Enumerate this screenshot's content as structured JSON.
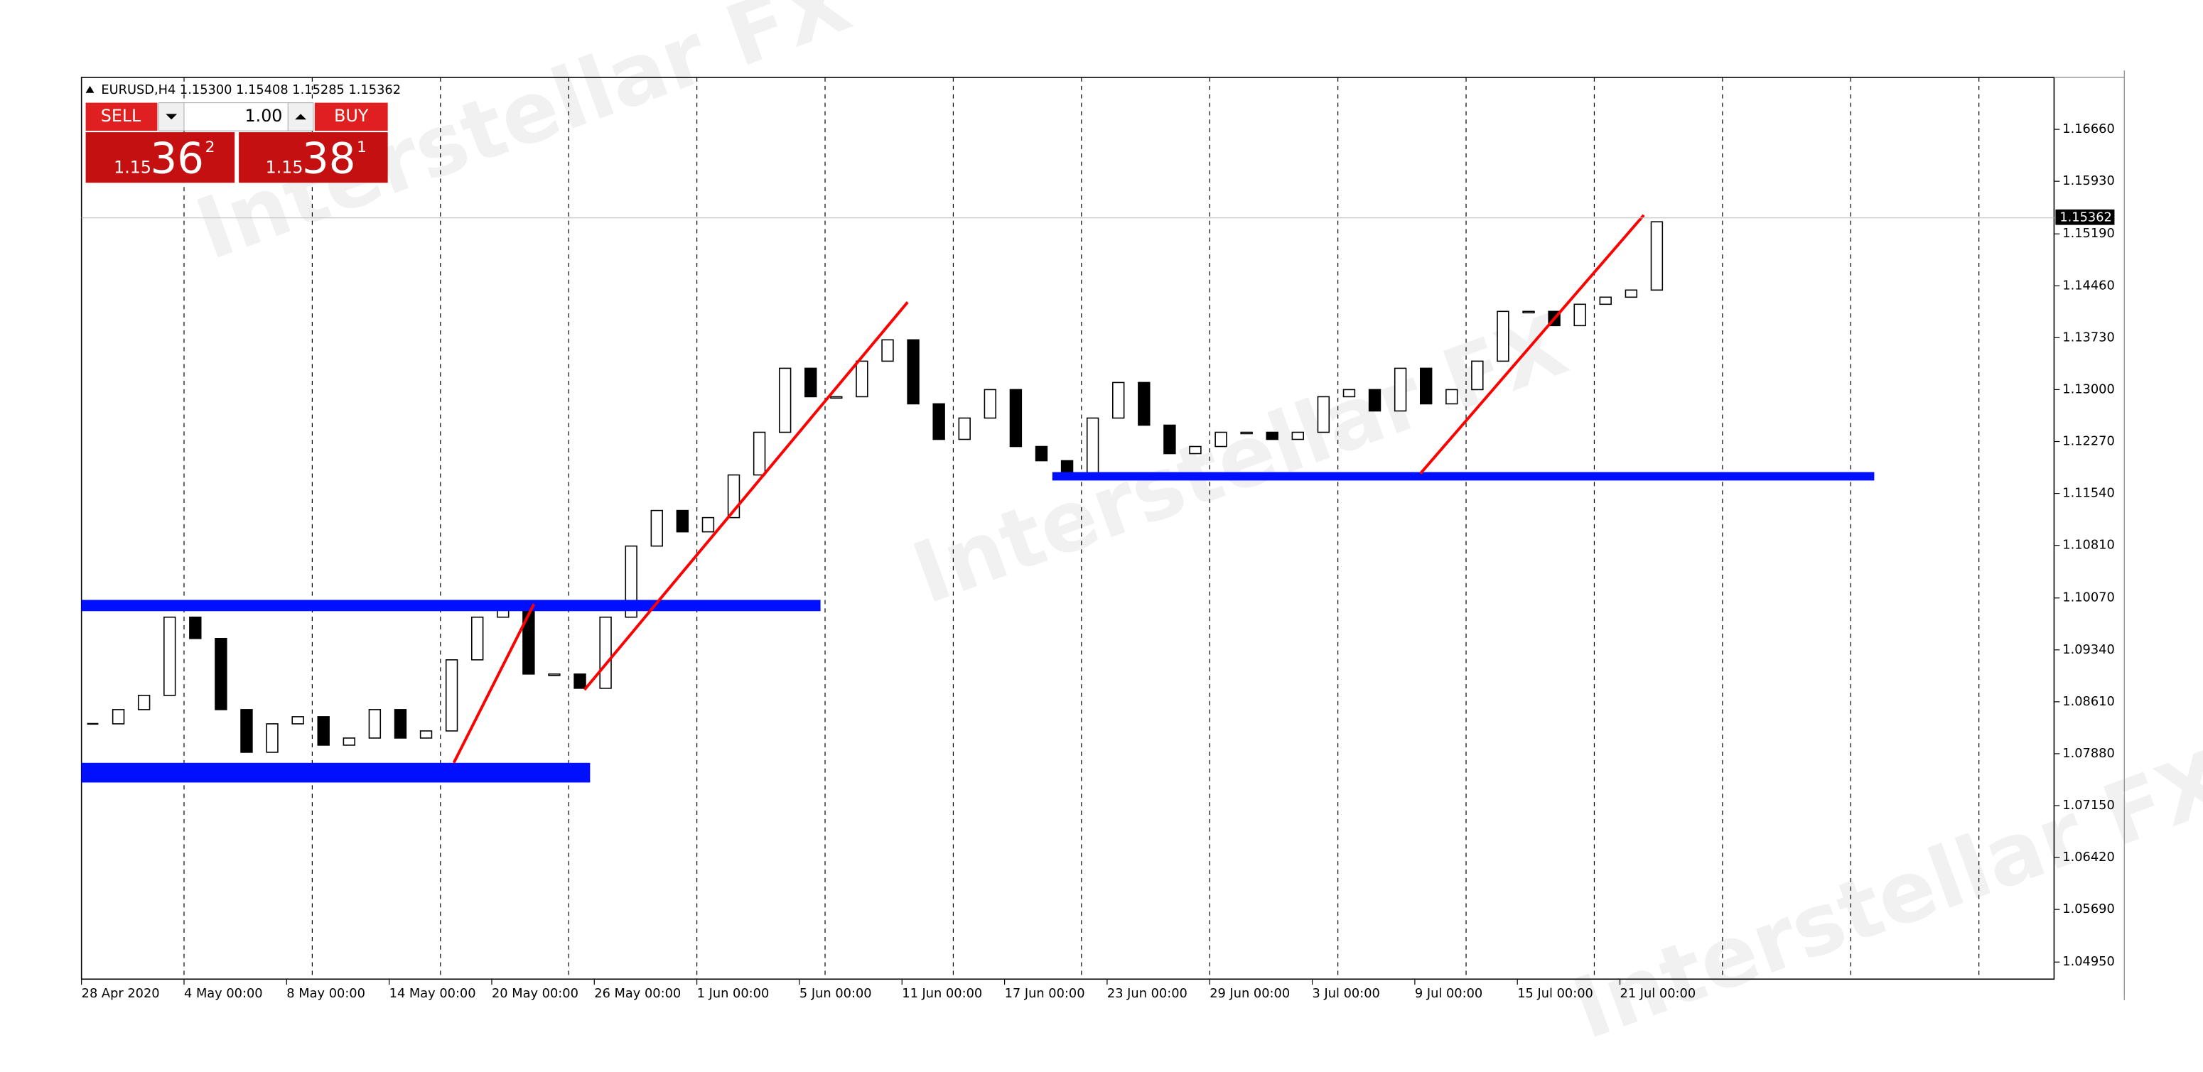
{
  "chart_data": {
    "type": "candlestick",
    "symbol_header": "EURUSD,H4  1.15300 1.15408 1.15285 1.15362",
    "trade_panel": {
      "sell": "SELL",
      "buy": "BUY",
      "lot": "1.00",
      "sell_big": "1.15",
      "sell_main": "36",
      "sell_sup": "2",
      "buy_big": "1.15",
      "buy_main": "38",
      "buy_sup": "1"
    },
    "price_label": "1.15362",
    "watermark": "Interstellar FX",
    "categories": [
      "28 Apr 2020",
      null,
      null,
      null,
      "4 May 00:00",
      null,
      null,
      null,
      "8 May 00:00",
      null,
      null,
      null,
      "14 May 00:00",
      null,
      null,
      null,
      "20 May 00:00",
      null,
      null,
      null,
      "26 May 00:00",
      null,
      null,
      null,
      "1 Jun 00:00",
      null,
      null,
      null,
      "5 Jun 00:00",
      null,
      null,
      null,
      "11 Jun 00:00",
      null,
      null,
      null,
      "17 Jun 00:00",
      null,
      null,
      null,
      "23 Jun 00:00",
      null,
      null,
      null,
      "29 Jun 00:00",
      null,
      null,
      null,
      "3 Jul 00:00",
      null,
      null,
      null,
      "9 Jul 00:00",
      null,
      null,
      null,
      "15 Jul 00:00",
      null,
      null,
      null,
      "21 Jul 00:00",
      null
    ],
    "values": [
      1.083,
      1.085,
      1.087,
      1.098,
      1.095,
      1.085,
      1.079,
      1.083,
      1.084,
      1.08,
      1.081,
      1.085,
      1.081,
      1.082,
      1.092,
      1.098,
      1.1,
      1.09,
      1.09,
      1.088,
      1.098,
      1.108,
      1.113,
      1.11,
      1.112,
      1.118,
      1.124,
      1.133,
      1.129,
      1.129,
      1.134,
      1.137,
      1.128,
      1.123,
      1.126,
      1.13,
      1.122,
      1.12,
      1.118,
      1.126,
      1.131,
      1.125,
      1.121,
      1.122,
      1.124,
      1.124,
      1.123,
      1.124,
      1.129,
      1.13,
      1.127,
      1.133,
      1.128,
      1.13,
      1.134,
      1.141,
      1.141,
      1.139,
      1.142,
      1.143,
      1.144,
      1.1536
    ],
    "ylim": [
      1.0471,
      1.1739
    ],
    "yticks": [
      {
        "value": 1.1666,
        "label": "1.16660"
      },
      {
        "value": 1.1593,
        "label": "1.15930"
      },
      {
        "value": 1.1519,
        "label": "1.15190"
      },
      {
        "value": 1.1446,
        "label": "1.14460"
      },
      {
        "value": 1.1373,
        "label": "1.13730"
      },
      {
        "value": 1.13,
        "label": "1.13000"
      },
      {
        "value": 1.1227,
        "label": "1.12270"
      },
      {
        "value": 1.1154,
        "label": "1.11540"
      },
      {
        "value": 1.1081,
        "label": "1.10810"
      },
      {
        "value": 1.1007,
        "label": "1.10070"
      },
      {
        "value": 1.0934,
        "label": "1.09340"
      },
      {
        "value": 1.0861,
        "label": "1.08610"
      },
      {
        "value": 1.0788,
        "label": "1.07880"
      },
      {
        "value": 1.0715,
        "label": "1.07150"
      },
      {
        "value": 1.0642,
        "label": "1.06420"
      },
      {
        "value": 1.0569,
        "label": "1.05690"
      },
      {
        "value": 1.0495,
        "label": "1.04950"
      }
    ]
  }
}
